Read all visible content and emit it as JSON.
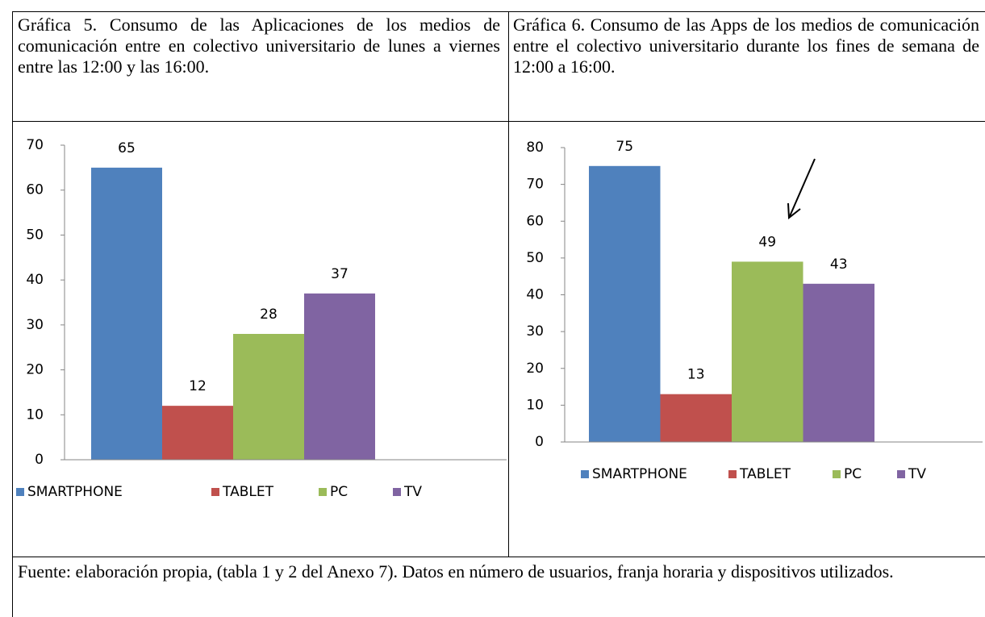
{
  "captions": [
    "Gráfica 5. Consumo de las Aplicaciones de los medios de comunicación entre en colectivo universitario de lunes a viernes entre las 12:00 y las 16:00.",
    "Gráfica 6. Consumo de las Apps de los medios de comunicación entre el colectivo universitario durante los fines de semana de 12:00 a 16:00."
  ],
  "chart_data": [
    {
      "type": "bar",
      "categories": [
        "SMARTPHONE",
        "TABLET",
        "PC",
        "TV"
      ],
      "values": [
        65,
        12,
        28,
        37
      ],
      "colors": [
        "#4f81bd",
        "#c0504d",
        "#9bbb59",
        "#8064a2"
      ],
      "ylim": [
        0,
        70
      ],
      "yticks": [
        0,
        10,
        20,
        30,
        40,
        50,
        60,
        70
      ],
      "grid": false,
      "legend": "bottom"
    },
    {
      "type": "bar",
      "categories": [
        "SMARTPHONE",
        "TABLET",
        "PC",
        "TV"
      ],
      "values": [
        75,
        13,
        49,
        43
      ],
      "colors": [
        "#4f81bd",
        "#c0504d",
        "#9bbb59",
        "#8064a2"
      ],
      "ylim": [
        0,
        80
      ],
      "yticks": [
        0,
        10,
        20,
        30,
        40,
        50,
        60,
        70,
        80
      ],
      "grid": false,
      "legend": "bottom"
    }
  ],
  "source": "Fuente: elaboración propia, (tabla 1 y 2 del Anexo 7).  Datos en número de usuarios, franja horaria y dispositivos utilizados."
}
